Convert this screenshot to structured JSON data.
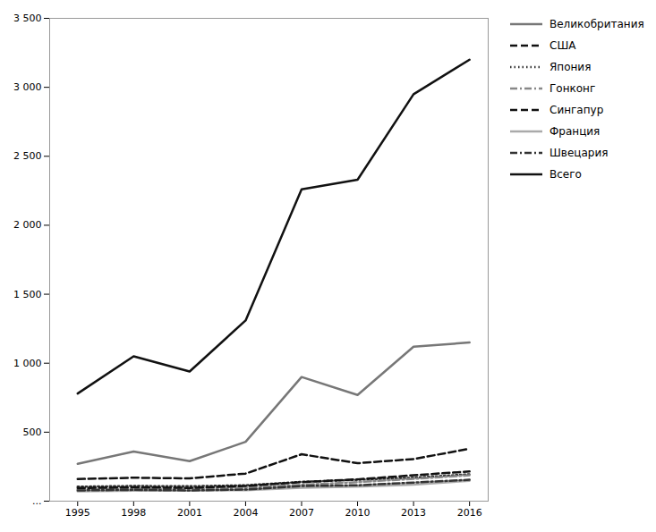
{
  "chart_data": {
    "type": "line",
    "x": [
      1995,
      1998,
      2001,
      2004,
      2007,
      2010,
      2013,
      2016
    ],
    "series": [
      {
        "name": "Великобритания",
        "color": "#777777",
        "line_style": "solid",
        "values": [
          270,
          360,
          290,
          430,
          900,
          770,
          1120,
          1150
        ]
      },
      {
        "name": "США",
        "color": "#111111",
        "line_style": "dashed",
        "values": [
          160,
          170,
          165,
          200,
          340,
          275,
          305,
          380
        ]
      },
      {
        "name": "Япония",
        "color": "#333333",
        "line_style": "dotted",
        "values": [
          105,
          110,
          108,
          115,
          140,
          155,
          170,
          195
        ]
      },
      {
        "name": "Гонконг",
        "color": "#888888",
        "line_style": "dashdot",
        "values": [
          85,
          90,
          92,
          98,
          118,
          138,
          162,
          188
        ]
      },
      {
        "name": "Сингапур",
        "color": "#111111",
        "line_style": "dashed",
        "values": [
          95,
          100,
          96,
          110,
          138,
          158,
          188,
          215
        ]
      },
      {
        "name": "Франция",
        "color": "#aaaaaa",
        "line_style": "solid",
        "values": [
          72,
          76,
          76,
          80,
          98,
          105,
          120,
          148
        ]
      },
      {
        "name": "Швецария",
        "color": "#333333",
        "line_style": "dashdot",
        "values": [
          78,
          82,
          78,
          84,
          110,
          115,
          135,
          155
        ]
      },
      {
        "name": "Всего",
        "color": "#111111",
        "line_style": "solid",
        "values": [
          780,
          1050,
          940,
          1310,
          2260,
          2330,
          2950,
          3200
        ]
      }
    ],
    "xlim": [
      1993.5,
      2017.0
    ],
    "xticks": [
      1995,
      1998,
      2001,
      2004,
      2007,
      2010,
      2013,
      2016
    ],
    "ylim": [
      0,
      3500
    ],
    "yticks": [
      {
        "value": 0,
        "label": "..."
      },
      500,
      {
        "value": 1000,
        "label": "1 000"
      },
      {
        "value": 1500,
        "label": "1 500"
      },
      {
        "value": 2000,
        "label": "2 000"
      },
      {
        "value": 2500,
        "label": "2 500"
      },
      {
        "value": 3000,
        "label": "3 000"
      },
      {
        "value": 3500,
        "label": "3 500"
      }
    ],
    "grid": false,
    "legend": "upper right"
  }
}
